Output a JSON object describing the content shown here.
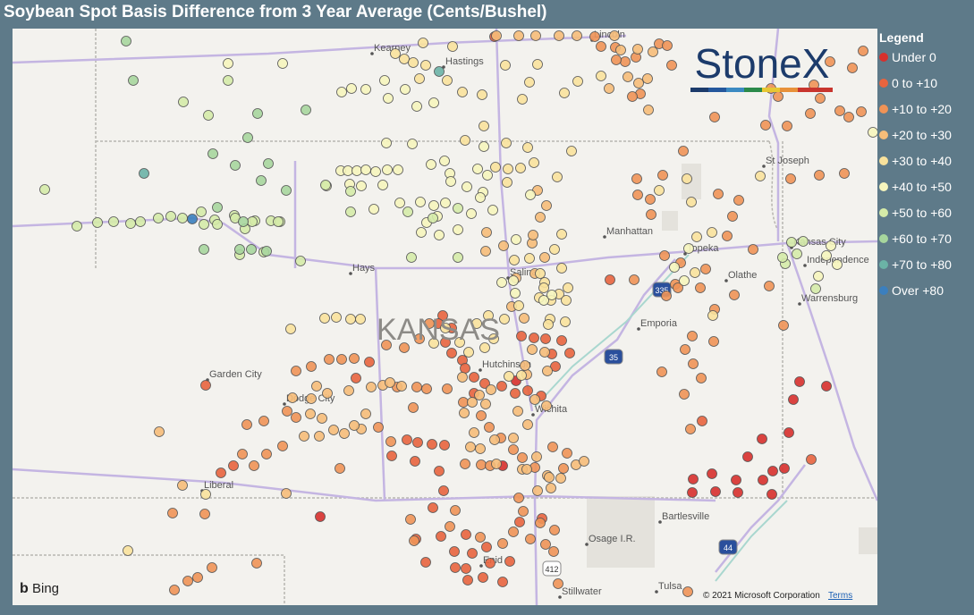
{
  "header": {
    "title": "Soybean Spot Basis Difference from 3 Year Average (Cents/Bushel)"
  },
  "legend": {
    "title": "Legend",
    "items": [
      {
        "label": "Under 0",
        "color": "#d7302c"
      },
      {
        "label": "0 to +10",
        "color": "#e8643e"
      },
      {
        "label": "+10 to +20",
        "color": "#f09356"
      },
      {
        "label": "+20 to +30",
        "color": "#f6bd79"
      },
      {
        "label": "+30 to +40",
        "color": "#f9e29c"
      },
      {
        "label": "+40 to +50",
        "color": "#f6f5bd"
      },
      {
        "label": "+50 to +60",
        "color": "#d5eba8"
      },
      {
        "label": "+60 to +70",
        "color": "#a7d69d"
      },
      {
        "label": "+70 to +80",
        "color": "#6bb3a6"
      },
      {
        "label": "Over +80",
        "color": "#3b7fbe"
      }
    ]
  },
  "map": {
    "state_label": "KANSAS",
    "places": [
      "Kearney",
      "Hastings",
      "Lincoln",
      "St Joseph",
      "Manhattan",
      "Topeka",
      "Kansas City",
      "Independence",
      "Olathe",
      "Warrensburg",
      "Hays",
      "Salina",
      "Emporia",
      "Hutchinson",
      "Garden City",
      "Dodge City",
      "Wichita",
      "Liberal",
      "Bartlesville",
      "Osage I.R.",
      "Enid",
      "Stillwater",
      "Tulsa"
    ],
    "highways": [
      "335",
      "35",
      "44",
      "412"
    ],
    "logo": "StoneX",
    "attribution": "Bing",
    "copyright": "© 2021 Microsoft Corporation",
    "terms": "Terms"
  }
}
